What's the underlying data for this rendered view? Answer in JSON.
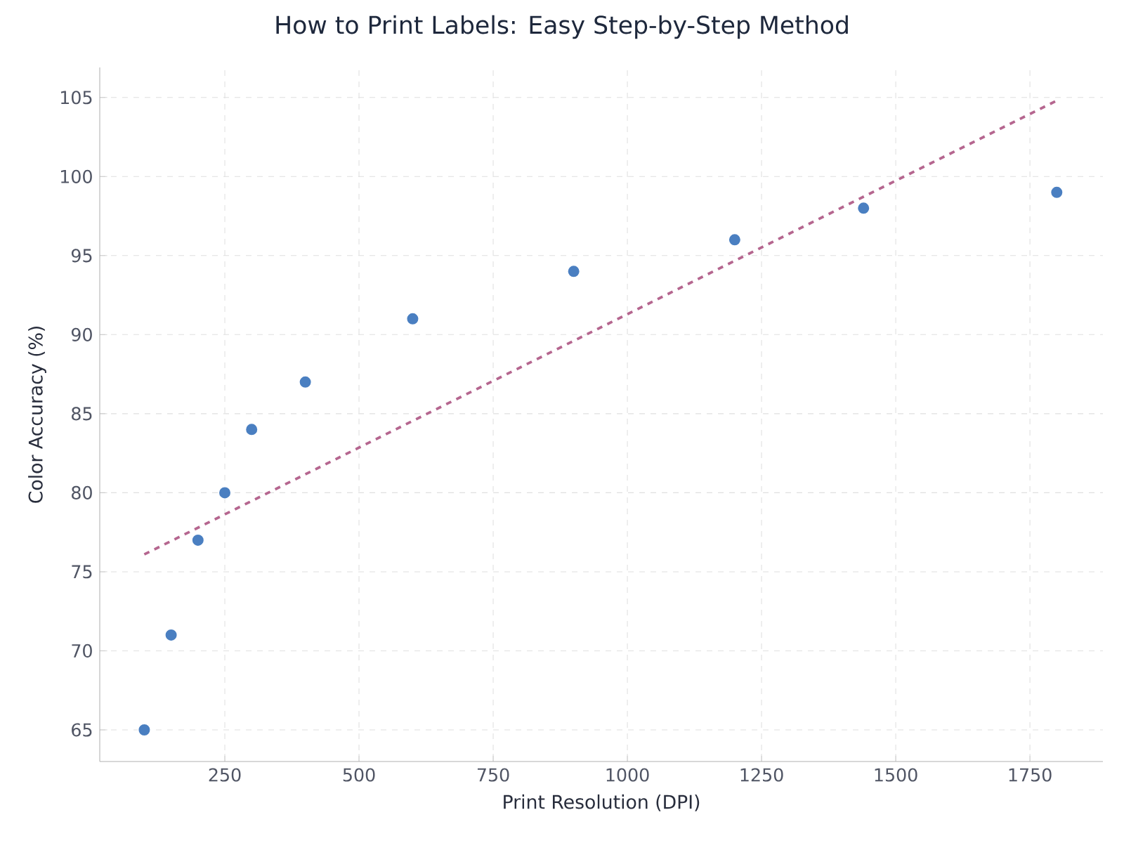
{
  "chart_data": {
    "type": "scatter",
    "title": "How to Print Labels: Easy Step-by-Step Method",
    "xlabel": "Print Resolution (DPI)",
    "ylabel": "Color Accuracy (%)",
    "x": [
      100,
      150,
      200,
      250,
      300,
      400,
      600,
      900,
      1200,
      1440,
      1800
    ],
    "series": [
      {
        "color": "#4a7fc1",
        "marker": "circle",
        "values": [
          65,
          71,
          77,
          80,
          84,
          87,
          91,
          94,
          96,
          98,
          99
        ]
      },
      {
        "type": "line",
        "color": "#b5668f",
        "line_style": "dashed",
        "marker": "none",
        "x": [
          100,
          1800
        ],
        "values": [
          76.1,
          104.8
        ]
      }
    ],
    "xlim": [
      17,
      1886
    ],
    "ylim": [
      63,
      106.9
    ],
    "xticks": [
      250,
      500,
      750,
      1000,
      1250,
      1500,
      1750
    ],
    "yticks": [
      65,
      70,
      75,
      80,
      85,
      90,
      95,
      100,
      105
    ],
    "grid": true
  }
}
